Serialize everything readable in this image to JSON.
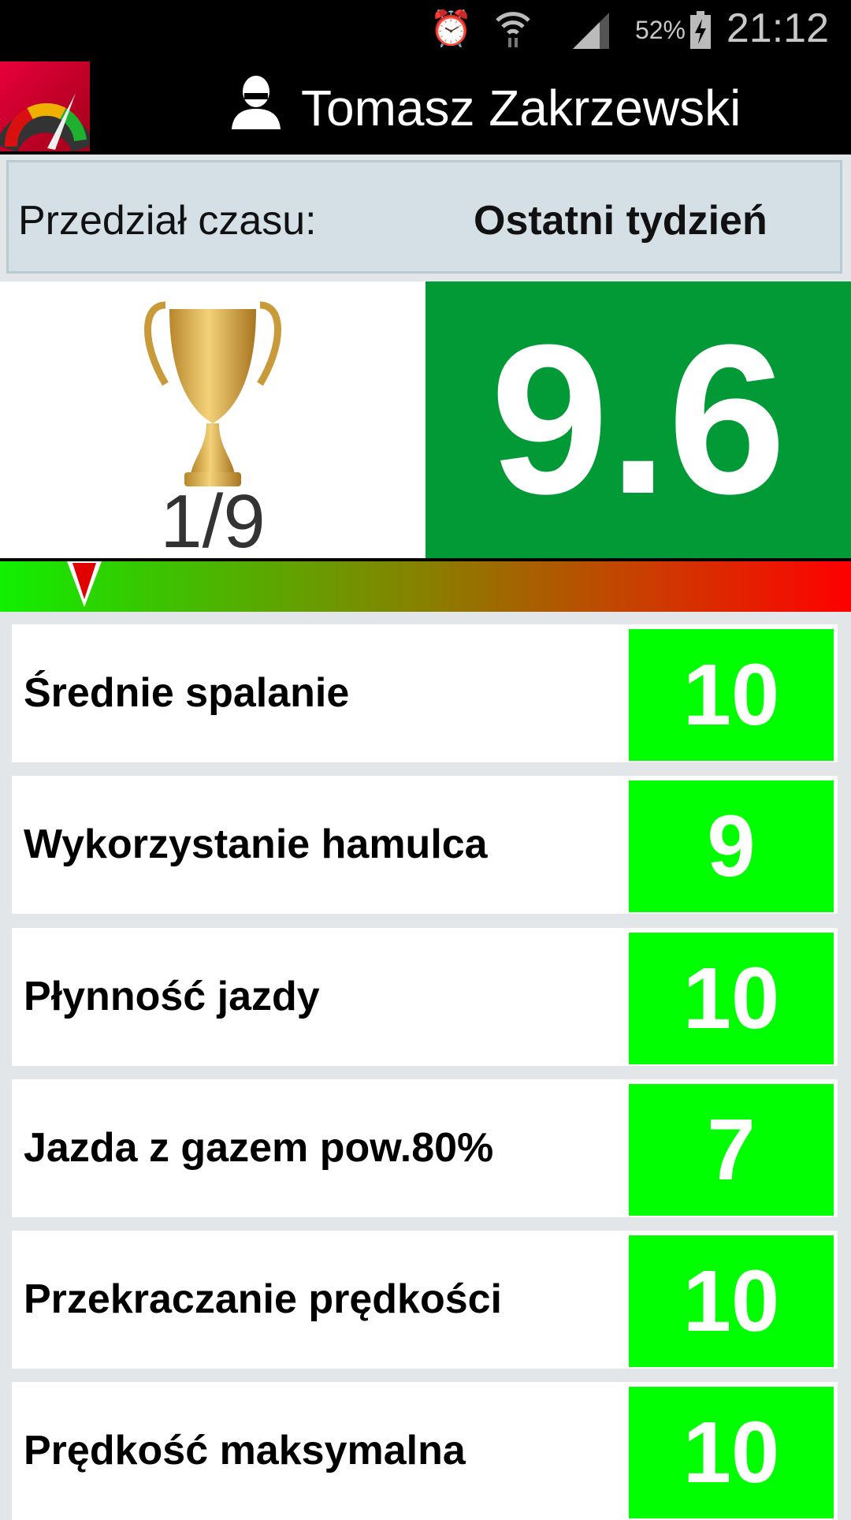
{
  "status_bar": {
    "battery": "52%",
    "time": "21:12",
    "icons": [
      "alarm-icon",
      "wifi-icon",
      "signal-icon",
      "battery-charging-icon"
    ]
  },
  "app_bar": {
    "user_name": "Tomasz Zakrzewski",
    "logo_icon": "speedometer-icon",
    "user_icon": "person-icon"
  },
  "period": {
    "label": "Przedział czasu:",
    "value": "Ostatni tydzień"
  },
  "summary": {
    "rank": "1/9",
    "score": "9.6",
    "score_color": "#029a36",
    "gauge_position": 0.09
  },
  "metrics": [
    {
      "name": "Średnie spalanie",
      "value": "10"
    },
    {
      "name": "Wykorzystanie hamulca",
      "value": "9"
    },
    {
      "name": "Płynność jazdy",
      "value": "10"
    },
    {
      "name": "Jazda z gazem pow.80%",
      "value": "7"
    },
    {
      "name": "Przekraczanie prędkości",
      "value": "10"
    },
    {
      "name": "Prędkość maksymalna",
      "value": "10"
    }
  ],
  "colors": {
    "metric_good": "#00ff00",
    "gauge_marker": "#e00000"
  }
}
